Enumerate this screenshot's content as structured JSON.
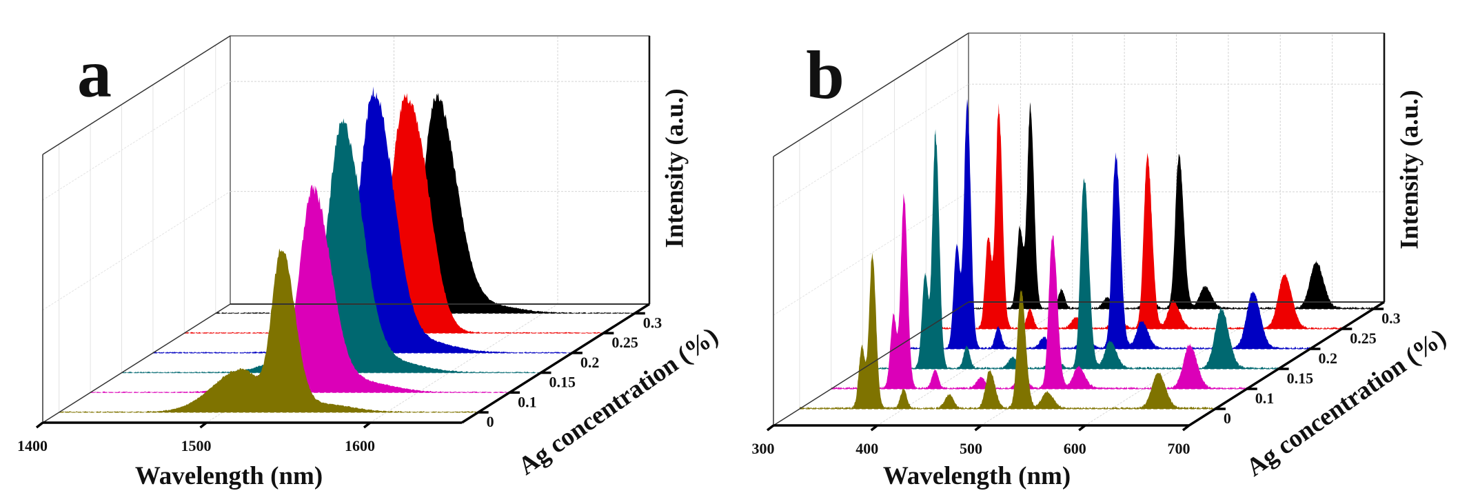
{
  "chart_data": [
    {
      "type": "area",
      "layout": "3d-waterfall",
      "panel_label": "a",
      "xlabel": "Wavelength (nm)",
      "ylabel": "Intensity (a.u.)",
      "zlabel": "Ag concentration (%)",
      "xlim": [
        1400,
        1656
      ],
      "ylim": [
        0,
        1
      ],
      "grid": true,
      "back_grid_x_step": 100,
      "back_grid_y": [
        0.42,
        0.83
      ],
      "xticks": [
        {
          "value": 1400,
          "label": "1400"
        },
        {
          "value": 1500,
          "label": "1500"
        },
        {
          "value": 1600,
          "label": "1600"
        }
      ],
      "zticks": [
        "0",
        "0.1",
        "0.15",
        "0.2",
        "0.25",
        "0.3"
      ],
      "series": [
        {
          "name": "0",
          "color": "#7f7300",
          "peaks": [
            [
              1536,
              0.6,
              6,
              8
            ],
            [
              1512,
              0.16,
              18,
              10
            ],
            [
              1560,
              0.03,
              12,
              18
            ]
          ]
        },
        {
          "name": "0.1",
          "color": "#db00b8",
          "peaks": [
            [
              1536,
              0.75,
              8,
              11
            ],
            [
              1505,
              0.06,
              15,
              15
            ],
            [
              1565,
              0.04,
              12,
              18
            ]
          ]
        },
        {
          "name": "0.15",
          "color": "#006870",
          "peaks": [
            [
              1535,
              0.92,
              9,
              12
            ],
            [
              1505,
              0.06,
              15,
              15
            ],
            [
              1565,
              0.04,
              12,
              18
            ]
          ]
        },
        {
          "name": "0.2",
          "color": "#0000c2",
          "peaks": [
            [
              1535,
              0.96,
              9,
              12
            ],
            [
              1505,
              0.05,
              15,
              15
            ],
            [
              1565,
              0.04,
              12,
              18
            ]
          ]
        },
        {
          "name": "0.25",
          "color": "#ee0000",
          "peaks": [
            [
              1535,
              0.86,
              9,
              12
            ],
            [
              1548,
              0.1,
              6,
              8
            ],
            [
              1505,
              0.04,
              15,
              15
            ]
          ]
        },
        {
          "name": "0.3",
          "color": "#000000",
          "peaks": [
            [
              1535,
              0.8,
              8,
              12
            ],
            [
              1505,
              0.04,
              15,
              15
            ],
            [
              1565,
              0.03,
              12,
              18
            ]
          ]
        }
      ]
    },
    {
      "type": "area",
      "layout": "3d-waterfall",
      "panel_label": "b",
      "xlabel": "Wavelength (nm)",
      "ylabel": "Intensity (a.u.)",
      "zlabel": "Ag concentration (%)",
      "xlim": [
        300,
        700
      ],
      "ylim": [
        0,
        1
      ],
      "grid": true,
      "back_grid_x_step": 50,
      "back_grid_y": [
        0.41,
        0.81
      ],
      "xticks": [
        {
          "value": 300,
          "label": "300"
        },
        {
          "value": 400,
          "label": "400"
        },
        {
          "value": 500,
          "label": "500"
        },
        {
          "value": 600,
          "label": "600"
        },
        {
          "value": 700,
          "label": "700"
        }
      ],
      "zticks": [
        "0",
        "0.1",
        "0.15",
        "0.2",
        "0.25",
        "0.3"
      ],
      "series": [
        {
          "name": "0",
          "color": "#7f7300",
          "peaks": [
            [
              360,
              0.23,
              3,
              3
            ],
            [
              370,
              0.57,
              3,
              3.5
            ],
            [
              400,
              0.07,
              3,
              3
            ],
            [
              444,
              0.05,
              4,
              4
            ],
            [
              483,
              0.14,
              4,
              5
            ],
            [
              513,
              0.44,
              3.5,
              4.5
            ],
            [
              538,
              0.06,
              5,
              6
            ],
            [
              645,
              0.13,
              6,
              7
            ]
          ]
        },
        {
          "name": "0.1",
          "color": "#db00b8",
          "peaks": [
            [
              360,
              0.27,
              3,
              3
            ],
            [
              370,
              0.71,
              3,
              3.5
            ],
            [
              400,
              0.07,
              3,
              3
            ],
            [
              444,
              0.04,
              4,
              4
            ],
            [
              483,
              0.06,
              4,
              5
            ],
            [
              513,
              0.57,
              3.5,
              4.5
            ],
            [
              538,
              0.08,
              5,
              6
            ],
            [
              645,
              0.16,
              6,
              7
            ]
          ]
        },
        {
          "name": "0.15",
          "color": "#006870",
          "peaks": [
            [
              360,
              0.35,
              3,
              3
            ],
            [
              370,
              0.87,
              3,
              3.5
            ],
            [
              400,
              0.08,
              3,
              3
            ],
            [
              444,
              0.04,
              4,
              4
            ],
            [
              483,
              0.07,
              4,
              5
            ],
            [
              513,
              0.71,
              3.5,
              4.5
            ],
            [
              538,
              0.1,
              5,
              6
            ],
            [
              645,
              0.22,
              6,
              7
            ]
          ]
        },
        {
          "name": "0.2",
          "color": "#0000c2",
          "peaks": [
            [
              360,
              0.38,
              3,
              3
            ],
            [
              370,
              0.91,
              3,
              3.5
            ],
            [
              400,
              0.08,
              3,
              3
            ],
            [
              444,
              0.04,
              4,
              4
            ],
            [
              483,
              0.07,
              4,
              5
            ],
            [
              513,
              0.72,
              3.5,
              4.5
            ],
            [
              538,
              0.1,
              5,
              6
            ],
            [
              645,
              0.21,
              6,
              7
            ]
          ]
        },
        {
          "name": "0.25",
          "color": "#ee0000",
          "peaks": [
            [
              360,
              0.34,
              3,
              3
            ],
            [
              370,
              0.82,
              3,
              3.5
            ],
            [
              400,
              0.07,
              3,
              3
            ],
            [
              444,
              0.04,
              4,
              4
            ],
            [
              483,
              0.07,
              4,
              5
            ],
            [
              513,
              0.64,
              3.5,
              4.5
            ],
            [
              538,
              0.1,
              5,
              6
            ],
            [
              645,
              0.2,
              6,
              7
            ]
          ]
        },
        {
          "name": "0.3",
          "color": "#000000",
          "peaks": [
            [
              360,
              0.3,
              3,
              3
            ],
            [
              370,
              0.75,
              3,
              3.5
            ],
            [
              400,
              0.07,
              3,
              3
            ],
            [
              444,
              0.04,
              4,
              4
            ],
            [
              483,
              0.06,
              4,
              5
            ],
            [
              513,
              0.57,
              3.5,
              4.5
            ],
            [
              538,
              0.08,
              5,
              6
            ],
            [
              645,
              0.17,
              6,
              7
            ]
          ]
        }
      ]
    }
  ]
}
